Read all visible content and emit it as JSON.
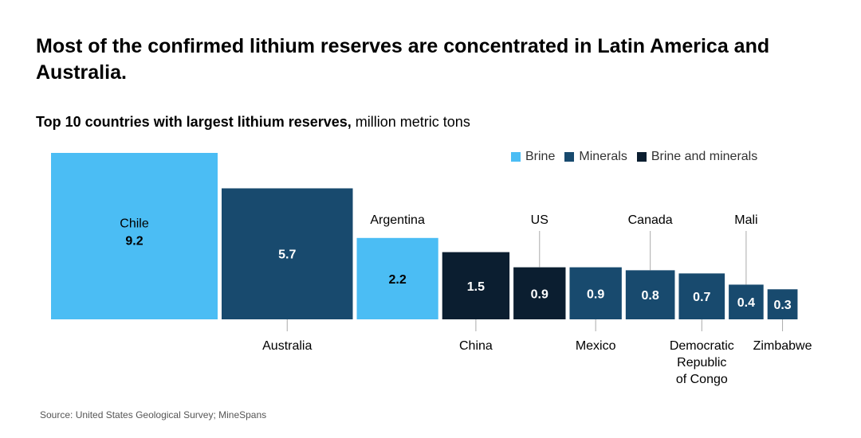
{
  "title": "Most of the confirmed lithium reserves are concentrated in Latin America and Australia.",
  "subtitle_bold": "Top 10 countries with largest lithium reserves,",
  "subtitle_unit": " million metric tons",
  "source": "Source: United States Geological Survey; MineSpans",
  "colors": {
    "brine": "#4bbdf4",
    "minerals": "#184a6e",
    "brine_and_minerals": "#0b1e30"
  },
  "legend": [
    {
      "key": "brine",
      "label": "Brine"
    },
    {
      "key": "minerals",
      "label": "Minerals"
    },
    {
      "key": "brine_and_minerals",
      "label": "Brine and minerals"
    }
  ],
  "chart_data": {
    "type": "bar",
    "title": "Top 10 countries with largest lithium reserves",
    "unit": "million metric tons",
    "categories": [
      "Chile",
      "Australia",
      "Argentina",
      "China",
      "US",
      "Mexico",
      "Canada",
      "Democratic Republic of Congo",
      "Mali",
      "Zimbabwe"
    ],
    "values": [
      9.2,
      5.7,
      2.2,
      1.5,
      0.9,
      0.9,
      0.8,
      0.7,
      0.4,
      0.3
    ],
    "value_labels": [
      "9.2",
      "5.7",
      "2.2",
      "1.5",
      "0.9",
      "0.9",
      "0.8",
      "0.7",
      "0.4",
      "0.3"
    ],
    "types": [
      "brine",
      "minerals",
      "brine",
      "brine_and_minerals",
      "brine_and_minerals",
      "minerals",
      "minerals",
      "minerals",
      "minerals",
      "minerals"
    ],
    "label_lines": [
      [
        "Chile"
      ],
      [
        "Australia"
      ],
      [
        "Argentina"
      ],
      [
        "China"
      ],
      [
        "US"
      ],
      [
        "Mexico"
      ],
      [
        "Canada"
      ],
      [
        "Democratic",
        "Republic",
        "of Congo"
      ],
      [
        "Mali"
      ],
      [
        "Zimbabwe"
      ]
    ],
    "label_position": [
      "inside",
      "below",
      "above",
      "below",
      "above",
      "below",
      "above",
      "below",
      "above",
      "below"
    ],
    "legend_position": "top-right"
  }
}
